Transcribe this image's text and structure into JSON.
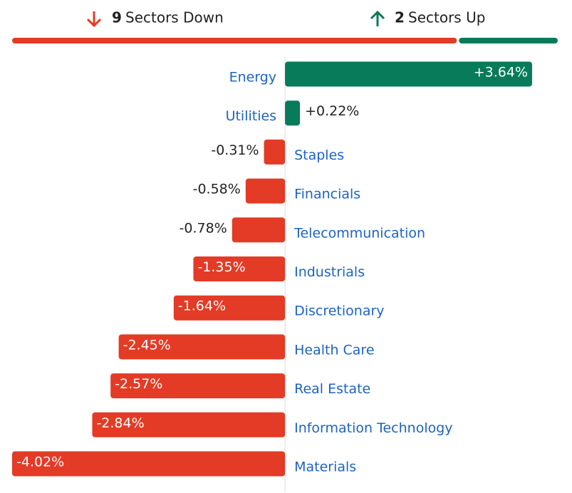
{
  "header": {
    "down_count": 9,
    "down_label": "Sectors Down",
    "up_count": 2,
    "up_label": "Sectors Up"
  },
  "chart_data": {
    "type": "bar",
    "orientation": "horizontal",
    "categories": [
      "Energy",
      "Utilities",
      "Staples",
      "Financials",
      "Telecommunication",
      "Industrials",
      "Discretionary",
      "Health Care",
      "Real Estate",
      "Information Technology",
      "Materials"
    ],
    "values": [
      3.64,
      0.22,
      -0.31,
      -0.58,
      -0.78,
      -1.35,
      -1.64,
      -2.45,
      -2.57,
      -2.84,
      -4.02
    ],
    "value_labels": [
      "+3.64%",
      "+0.22%",
      "-0.31%",
      "-0.58%",
      "-0.78%",
      "-1.35%",
      "-1.64%",
      "-2.45%",
      "-2.57%",
      "-2.84%",
      "-4.02%"
    ],
    "positive_color": "#087b5a",
    "negative_color": "#e33b26"
  }
}
